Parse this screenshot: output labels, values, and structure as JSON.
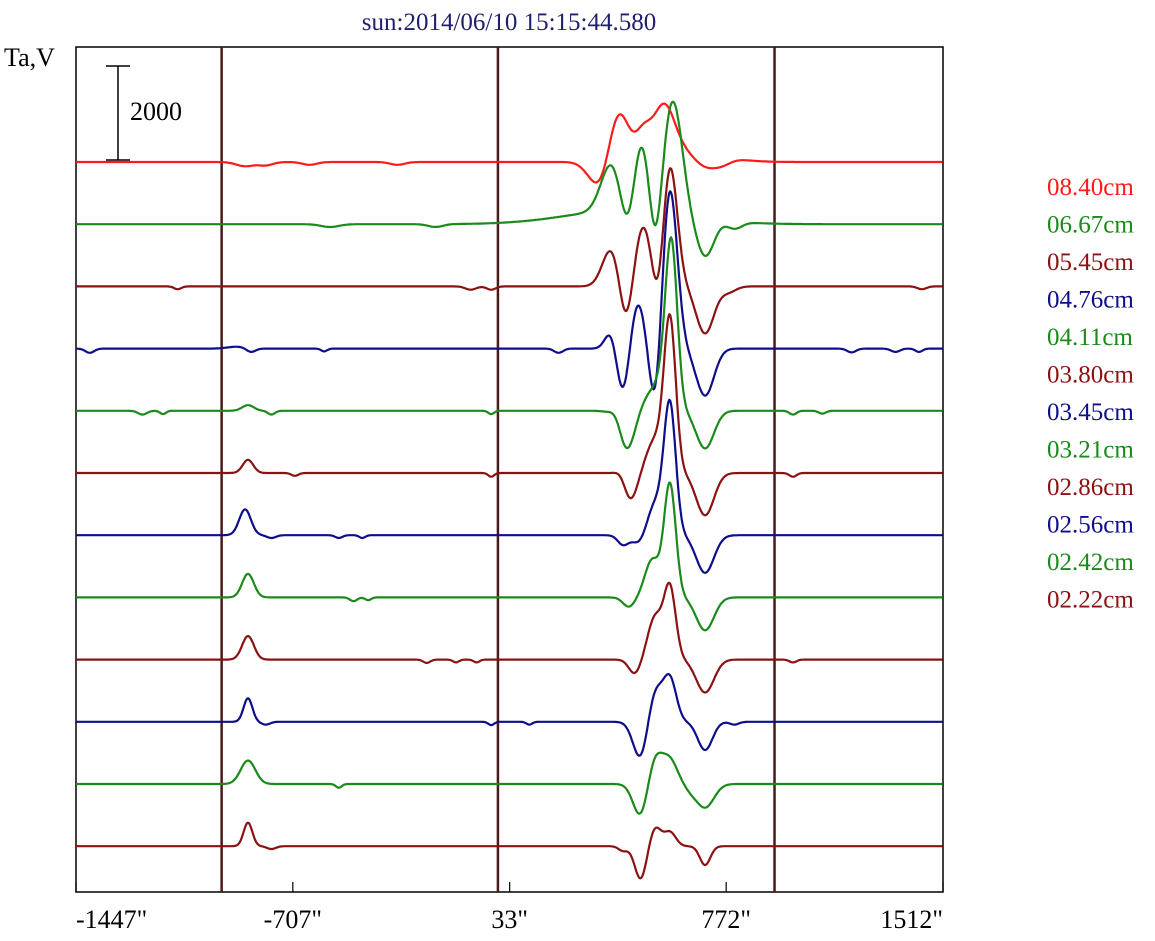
{
  "chart_data": {
    "type": "line",
    "title": "sun:2014/06/10 15:15:44.580",
    "ylabel": "Ta,V",
    "x_tick_labels": [
      "-1447\"",
      "-707\"",
      "33\"",
      "772\"",
      "1512\""
    ],
    "x_ticks": [
      -1447,
      -707,
      33,
      772,
      1512
    ],
    "xlim": [
      -1447,
      1512
    ],
    "scale_bar": {
      "label": "2000",
      "value": 2000
    },
    "vertical_markers": [
      -950,
      -7,
      937
    ],
    "colors": {
      "red": "#ff1a1a",
      "green": "#1a8a1a",
      "maroon": "#8b1212",
      "navy": "#0e0e8a",
      "frame": "#000000",
      "marker": "#4a1a1a",
      "title": "#1f1f6e"
    },
    "series": [
      {
        "name": "08.40cm",
        "color": "#ff1a1a",
        "peaks": [
          [
            -870,
            -90,
            30
          ],
          [
            -800,
            -70,
            25
          ],
          [
            -650,
            -60,
            25
          ],
          [
            -350,
            -60,
            25
          ],
          [
            350,
            -700,
            40
          ],
          [
            400,
            1200,
            35
          ],
          [
            490,
            450,
            25
          ],
          [
            560,
            950,
            35
          ],
          [
            700,
            -300,
            40
          ],
          [
            760,
            -120,
            30
          ],
          [
            600,
            300,
            120
          ]
        ]
      },
      {
        "name": "06.67cm",
        "color": "#1a8a1a",
        "peaks": [
          [
            -580,
            -60,
            30
          ],
          [
            -220,
            -60,
            25
          ],
          [
            380,
            1000,
            35
          ],
          [
            440,
            -900,
            25
          ],
          [
            480,
            1600,
            30
          ],
          [
            530,
            -1100,
            20
          ],
          [
            590,
            2400,
            32
          ],
          [
            700,
            -800,
            30
          ],
          [
            800,
            -150,
            25
          ],
          [
            430,
            300,
            200
          ]
        ]
      },
      {
        "name": "05.45cm",
        "color": "#8b1212",
        "peaks": [
          [
            -1100,
            -60,
            12
          ],
          [
            -100,
            -70,
            18
          ],
          [
            -30,
            -70,
            15
          ],
          [
            380,
            800,
            30
          ],
          [
            430,
            -900,
            22
          ],
          [
            490,
            1300,
            30
          ],
          [
            540,
            -800,
            20
          ],
          [
            580,
            2600,
            25
          ],
          [
            700,
            -1000,
            30
          ],
          [
            780,
            -120,
            25
          ],
          [
            1440,
            -60,
            15
          ]
        ]
      },
      {
        "name": "04.76cm",
        "color": "#0e0e8a",
        "peaks": [
          [
            -1400,
            -90,
            15
          ],
          [
            -900,
            40,
            30
          ],
          [
            -850,
            -80,
            15
          ],
          [
            -600,
            -60,
            10
          ],
          [
            200,
            -90,
            15
          ],
          [
            380,
            400,
            20
          ],
          [
            420,
            -1000,
            22
          ],
          [
            470,
            1000,
            25
          ],
          [
            530,
            -1300,
            20
          ],
          [
            580,
            3400,
            25
          ],
          [
            700,
            -1000,
            30
          ],
          [
            1200,
            -80,
            15
          ],
          [
            1350,
            -70,
            15
          ],
          [
            1430,
            -70,
            12
          ]
        ]
      },
      {
        "name": "04.11cm",
        "color": "#1a8a1a",
        "peaks": [
          [
            -1220,
            -80,
            15
          ],
          [
            -1150,
            -70,
            10
          ],
          [
            -860,
            120,
            20
          ],
          [
            -780,
            -80,
            12
          ],
          [
            -30,
            -70,
            10
          ],
          [
            400,
            300,
            20
          ],
          [
            430,
            -900,
            30
          ],
          [
            510,
            300,
            35
          ],
          [
            560,
            500,
            30
          ],
          [
            585,
            3300,
            20
          ],
          [
            700,
            -800,
            30
          ],
          [
            1000,
            -80,
            12
          ],
          [
            1100,
            -60,
            12
          ]
        ]
      },
      {
        "name": "03.80cm",
        "color": "#8b1212",
        "peaks": [
          [
            -860,
            280,
            18
          ],
          [
            -700,
            -60,
            12
          ],
          [
            -30,
            -80,
            10
          ],
          [
            420,
            300,
            20
          ],
          [
            440,
            -700,
            25
          ],
          [
            530,
            700,
            30
          ],
          [
            580,
            3200,
            20
          ],
          [
            700,
            -900,
            30
          ],
          [
            1000,
            -80,
            12
          ]
        ]
      },
      {
        "name": "03.45cm",
        "color": "#0e0e8a",
        "peaks": [
          [
            -870,
            550,
            20
          ],
          [
            -780,
            -60,
            15
          ],
          [
            -550,
            -60,
            12
          ],
          [
            -470,
            -60,
            10
          ],
          [
            420,
            -200,
            18
          ],
          [
            480,
            -250,
            25
          ],
          [
            530,
            700,
            30
          ],
          [
            580,
            2700,
            20
          ],
          [
            700,
            -800,
            30
          ]
        ]
      },
      {
        "name": "03.21cm",
        "color": "#1a8a1a",
        "peaks": [
          [
            -860,
            500,
            20
          ],
          [
            -500,
            -80,
            12
          ],
          [
            -450,
            -60,
            10
          ],
          [
            520,
            800,
            25
          ],
          [
            580,
            2400,
            20
          ],
          [
            700,
            -700,
            30
          ],
          [
            440,
            -200,
            20
          ]
        ]
      },
      {
        "name": "02.86cm",
        "color": "#8b1212",
        "peaks": [
          [
            -860,
            500,
            20
          ],
          [
            -250,
            -70,
            12
          ],
          [
            -150,
            -60,
            10
          ],
          [
            -80,
            -60,
            10
          ],
          [
            460,
            -300,
            20
          ],
          [
            530,
            900,
            25
          ],
          [
            580,
            1500,
            20
          ],
          [
            700,
            -700,
            30
          ],
          [
            1000,
            -60,
            12
          ]
        ]
      },
      {
        "name": "02.56cm",
        "color": "#0e0e8a",
        "peaks": [
          [
            -860,
            500,
            15
          ],
          [
            -800,
            -60,
            15
          ],
          [
            -30,
            -70,
            10
          ],
          [
            100,
            -60,
            10
          ],
          [
            480,
            -800,
            25
          ],
          [
            530,
            700,
            25
          ],
          [
            580,
            900,
            22
          ],
          [
            700,
            -600,
            25
          ],
          [
            800,
            -60,
            15
          ]
        ]
      },
      {
        "name": "02.42cm",
        "color": "#1a8a1a",
        "peaks": [
          [
            -860,
            500,
            25
          ],
          [
            -550,
            -80,
            10
          ],
          [
            480,
            -700,
            25
          ],
          [
            530,
            600,
            25
          ],
          [
            580,
            500,
            25
          ],
          [
            700,
            -500,
            30
          ],
          [
            650,
            -100,
            20
          ]
        ]
      },
      {
        "name": "02.22cm",
        "color": "#8b1212",
        "peaks": [
          [
            -860,
            500,
            15
          ],
          [
            -780,
            -60,
            15
          ],
          [
            420,
            -100,
            15
          ],
          [
            480,
            -700,
            20
          ],
          [
            530,
            400,
            20
          ],
          [
            580,
            300,
            20
          ],
          [
            700,
            -400,
            18
          ]
        ]
      }
    ]
  }
}
